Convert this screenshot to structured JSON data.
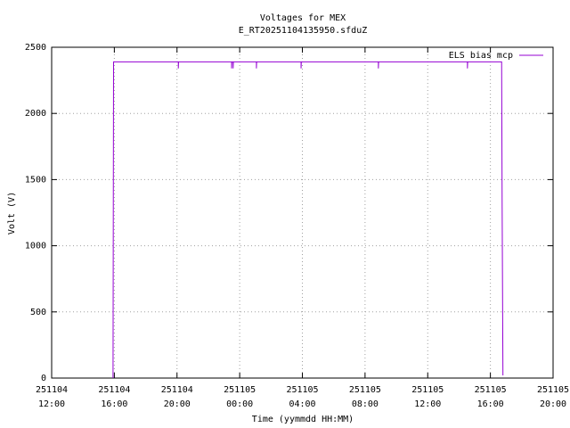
{
  "chart_data": {
    "type": "line",
    "title": "Voltages for MEX",
    "subtitle": "E_RT20251104135950.sfduZ",
    "xlabel": "Time (yymmdd HH:MM)",
    "ylabel": "Volt (V)",
    "x": [
      "251104 15:55",
      "251104 15:57",
      "251104 20:05",
      "251104 20:05",
      "251104 20:06",
      "251104 23:29",
      "251104 23:29",
      "251104 23:30",
      "251104 23:35",
      "251104 23:35",
      "251104 23:36",
      "251105 01:04",
      "251105 01:04",
      "251105 01:05",
      "251105 03:55",
      "251105 03:55",
      "251105 03:56",
      "251105 08:51",
      "251105 08:51",
      "251105 08:52",
      "251105 14:32",
      "251105 14:32",
      "251105 14:33",
      "251105 16:43",
      "251105 16:45",
      "251105 16:48"
    ],
    "series": [
      {
        "name": "ELS bias mcp",
        "color": "#9400d3",
        "values": [
          0,
          2390,
          2390,
          2340,
          2390,
          2390,
          2340,
          2390,
          2390,
          2340,
          2390,
          2390,
          2340,
          2390,
          2390,
          2340,
          2390,
          2390,
          2340,
          2390,
          2390,
          2340,
          2390,
          2390,
          1290,
          20
        ]
      }
    ],
    "xlim": [
      "251104 12:00",
      "251105 20:00"
    ],
    "xticks": [
      "251104 12:00",
      "251104 16:00",
      "251104 20:00",
      "251105 00:00",
      "251105 04:00",
      "251105 08:00",
      "251105 12:00",
      "251105 16:00",
      "251105 20:00"
    ],
    "ylim": [
      0,
      2500
    ],
    "yticks": [
      0,
      500,
      1000,
      1500,
      2000,
      2500
    ],
    "grid": true,
    "legend": "upper right"
  }
}
